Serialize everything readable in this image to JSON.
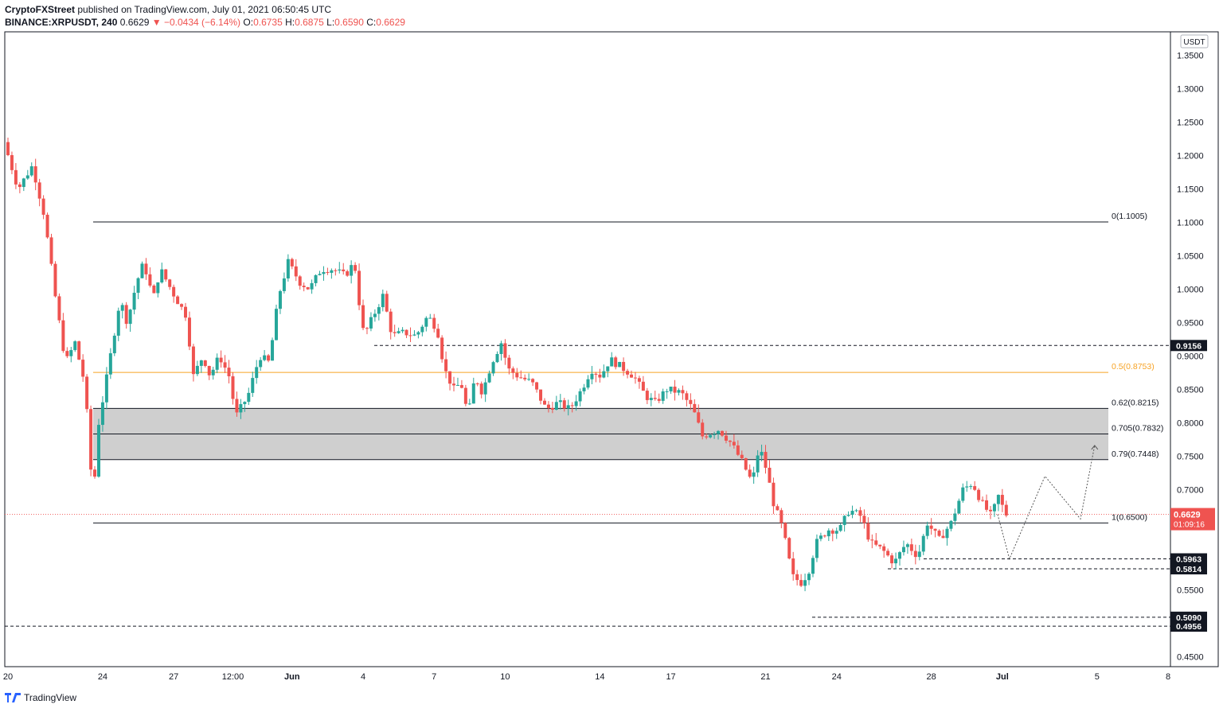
{
  "header": {
    "author": "CryptoFXStreet",
    "published_text": "published on TradingView.com, July 01, 2021 06:50:45 UTC",
    "symbol": "BINANCE:XRPUSDT, 240",
    "last": "0.6629",
    "change": "▼ −0.0434 (−6.14%)",
    "o_label": "O:",
    "o_value": "0.6735",
    "h_label": "H:",
    "h_value": "0.6875",
    "l_label": "L:",
    "l_value": "0.6590",
    "c_label": "C:",
    "c_value": "0.6629"
  },
  "footer": {
    "brand": "TradingView"
  },
  "chart_data": {
    "type": "candlestick",
    "currency": "USDT",
    "y_range": [
      0.435,
      1.385
    ],
    "y_ticks": [
      "1.3500",
      "1.3000",
      "1.2500",
      "1.2000",
      "1.1500",
      "1.1000",
      "1.0500",
      "1.0000",
      "0.9500",
      "0.9000",
      "0.8500",
      "0.8000",
      "0.7500",
      "0.7000",
      "0.6500",
      "0.6000",
      "0.5500",
      "0.5000",
      "0.4500"
    ],
    "x_ticks": [
      {
        "label": "20",
        "day": 20
      },
      {
        "label": "24",
        "day": 24
      },
      {
        "label": "27",
        "day": 27
      },
      {
        "label": "12:00",
        "day": 29.5
      },
      {
        "label": "Jun",
        "day": 32
      },
      {
        "label": "4",
        "day": 35
      },
      {
        "label": "7",
        "day": 38
      },
      {
        "label": "10",
        "day": 41
      },
      {
        "label": "14",
        "day": 45
      },
      {
        "label": "17",
        "day": 48
      },
      {
        "label": "21",
        "day": 52
      },
      {
        "label": "24",
        "day": 55
      },
      {
        "label": "28",
        "day": 59
      },
      {
        "label": "Jul",
        "day": 62
      },
      {
        "label": "5",
        "day": 66
      },
      {
        "label": "8",
        "day": 69
      }
    ],
    "fib_levels": [
      {
        "label": "0(1.1005)",
        "value": 1.1005,
        "color": "#131722"
      },
      {
        "label": "0.5(0.8753)",
        "value": 0.8753,
        "color": "#f7a325"
      },
      {
        "label": "0.62(0.8215)",
        "value": 0.8215,
        "color": "#131722"
      },
      {
        "label": "0.705(0.7832)",
        "value": 0.7832,
        "color": "#131722"
      },
      {
        "label": "0.79(0.7448)",
        "value": 0.7448,
        "color": "#131722"
      },
      {
        "label": "1(0.6500)",
        "value": 0.65,
        "color": "#131722"
      }
    ],
    "demand_zone": {
      "top": 0.8215,
      "bottom": 0.7448,
      "color": "#cfcfcf"
    },
    "horizontal_levels": [
      {
        "label": "0.9156",
        "value": 0.9156
      },
      {
        "label": "0.5963",
        "value": 0.5963
      },
      {
        "label": "0.5814",
        "value": 0.5814
      },
      {
        "label": "0.5090",
        "value": 0.509
      },
      {
        "label": "0.4956",
        "value": 0.4956
      }
    ],
    "current_price": {
      "label": "0.6629",
      "countdown": "01:09:16",
      "value": 0.6629,
      "color": "#ef5350"
    },
    "projection_path": [
      {
        "day": 61.8,
        "price": 0.6629
      },
      {
        "day": 62.3,
        "price": 0.5963
      },
      {
        "day": 63.8,
        "price": 0.72
      },
      {
        "day": 65.3,
        "price": 0.656
      },
      {
        "day": 65.9,
        "price": 0.766
      }
    ],
    "candle_keypoints": [
      {
        "day": 20.0,
        "price": 1.22
      },
      {
        "day": 20.6,
        "price": 1.15
      },
      {
        "day": 21.2,
        "price": 1.185
      },
      {
        "day": 21.7,
        "price": 1.11
      },
      {
        "day": 22.2,
        "price": 0.98
      },
      {
        "day": 22.6,
        "price": 0.89
      },
      {
        "day": 23.0,
        "price": 0.92
      },
      {
        "day": 23.4,
        "price": 0.86
      },
      {
        "day": 23.6,
        "price": 0.77
      },
      {
        "day": 23.75,
        "price": 0.68
      },
      {
        "day": 24.0,
        "price": 0.8
      },
      {
        "day": 24.4,
        "price": 0.88
      },
      {
        "day": 24.9,
        "price": 0.985
      },
      {
        "day": 25.2,
        "price": 0.95
      },
      {
        "day": 25.6,
        "price": 1.01
      },
      {
        "day": 25.9,
        "price": 1.04
      },
      {
        "day": 26.3,
        "price": 0.985
      },
      {
        "day": 26.6,
        "price": 1.03
      },
      {
        "day": 27.2,
        "price": 0.99
      },
      {
        "day": 27.7,
        "price": 0.96
      },
      {
        "day": 28.0,
        "price": 0.87
      },
      {
        "day": 28.4,
        "price": 0.9
      },
      {
        "day": 28.7,
        "price": 0.87
      },
      {
        "day": 29.1,
        "price": 0.9
      },
      {
        "day": 29.5,
        "price": 0.87
      },
      {
        "day": 29.8,
        "price": 0.81
      },
      {
        "day": 30.3,
        "price": 0.84
      },
      {
        "day": 30.8,
        "price": 0.9
      },
      {
        "day": 31.2,
        "price": 0.89
      },
      {
        "day": 31.6,
        "price": 0.99
      },
      {
        "day": 32.0,
        "price": 1.04
      },
      {
        "day": 32.5,
        "price": 1.01
      },
      {
        "day": 32.9,
        "price": 1.0
      },
      {
        "day": 33.4,
        "price": 1.03
      },
      {
        "day": 33.9,
        "price": 1.03
      },
      {
        "day": 34.4,
        "price": 1.02
      },
      {
        "day": 34.8,
        "price": 1.04
      },
      {
        "day": 35.0,
        "price": 0.98
      },
      {
        "day": 35.2,
        "price": 0.93
      },
      {
        "day": 35.6,
        "price": 0.96
      },
      {
        "day": 36.0,
        "price": 0.99
      },
      {
        "day": 36.4,
        "price": 0.93
      },
      {
        "day": 36.9,
        "price": 0.935
      },
      {
        "day": 37.4,
        "price": 0.93
      },
      {
        "day": 37.9,
        "price": 0.96
      },
      {
        "day": 38.3,
        "price": 0.94
      },
      {
        "day": 38.6,
        "price": 0.88
      },
      {
        "day": 39.0,
        "price": 0.85
      },
      {
        "day": 39.3,
        "price": 0.86
      },
      {
        "day": 39.6,
        "price": 0.81
      },
      {
        "day": 39.9,
        "price": 0.87
      },
      {
        "day": 40.2,
        "price": 0.845
      },
      {
        "day": 40.6,
        "price": 0.89
      },
      {
        "day": 41.0,
        "price": 0.92
      },
      {
        "day": 41.3,
        "price": 0.88
      },
      {
        "day": 41.7,
        "price": 0.87
      },
      {
        "day": 42.3,
        "price": 0.86
      },
      {
        "day": 42.9,
        "price": 0.82
      },
      {
        "day": 43.4,
        "price": 0.83
      },
      {
        "day": 43.9,
        "price": 0.82
      },
      {
        "day": 44.4,
        "price": 0.85
      },
      {
        "day": 44.8,
        "price": 0.88
      },
      {
        "day": 45.2,
        "price": 0.87
      },
      {
        "day": 45.6,
        "price": 0.895
      },
      {
        "day": 46.2,
        "price": 0.88
      },
      {
        "day": 46.6,
        "price": 0.87
      },
      {
        "day": 47.1,
        "price": 0.84
      },
      {
        "day": 47.5,
        "price": 0.83
      },
      {
        "day": 48.0,
        "price": 0.85
      },
      {
        "day": 48.6,
        "price": 0.845
      },
      {
        "day": 49.1,
        "price": 0.82
      },
      {
        "day": 49.5,
        "price": 0.78
      },
      {
        "day": 50.2,
        "price": 0.79
      },
      {
        "day": 50.7,
        "price": 0.77
      },
      {
        "day": 51.2,
        "price": 0.74
      },
      {
        "day": 51.6,
        "price": 0.71
      },
      {
        "day": 51.9,
        "price": 0.765
      },
      {
        "day": 52.2,
        "price": 0.73
      },
      {
        "day": 52.5,
        "price": 0.68
      },
      {
        "day": 52.9,
        "price": 0.64
      },
      {
        "day": 53.3,
        "price": 0.57
      },
      {
        "day": 53.7,
        "price": 0.56
      },
      {
        "day": 54.0,
        "price": 0.58
      },
      {
        "day": 54.3,
        "price": 0.62
      },
      {
        "day": 54.8,
        "price": 0.64
      },
      {
        "day": 55.3,
        "price": 0.64
      },
      {
        "day": 55.7,
        "price": 0.67
      },
      {
        "day": 56.2,
        "price": 0.66
      },
      {
        "day": 56.6,
        "price": 0.62
      },
      {
        "day": 57.1,
        "price": 0.61
      },
      {
        "day": 57.6,
        "price": 0.59
      },
      {
        "day": 58.1,
        "price": 0.62
      },
      {
        "day": 58.6,
        "price": 0.6
      },
      {
        "day": 59.0,
        "price": 0.65
      },
      {
        "day": 59.5,
        "price": 0.625
      },
      {
        "day": 60.0,
        "price": 0.65
      },
      {
        "day": 60.5,
        "price": 0.7
      },
      {
        "day": 60.9,
        "price": 0.71
      },
      {
        "day": 61.3,
        "price": 0.68
      },
      {
        "day": 61.7,
        "price": 0.66
      },
      {
        "day": 62.0,
        "price": 0.69
      },
      {
        "day": 62.3,
        "price": 0.663
      }
    ]
  }
}
